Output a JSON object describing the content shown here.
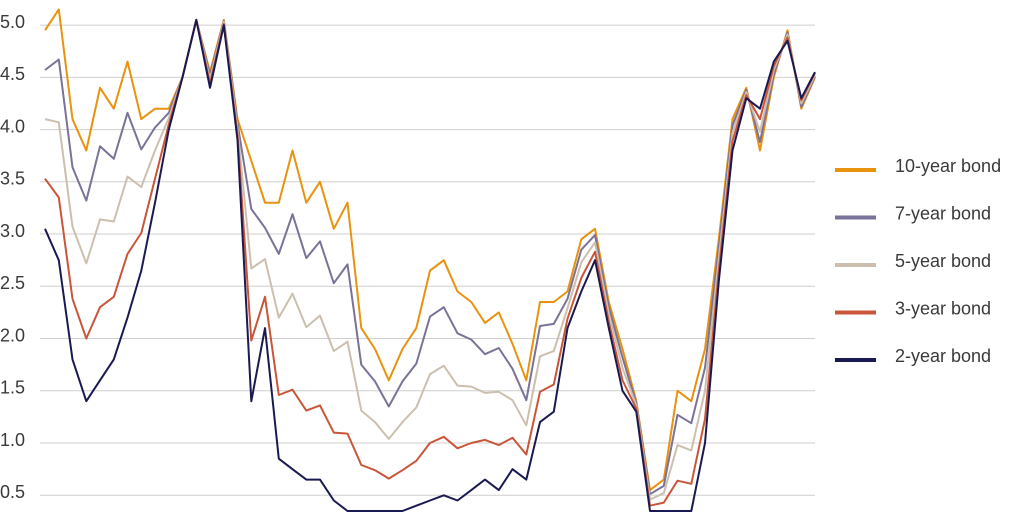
{
  "chart_data": {
    "type": "line",
    "categories": [
      null,
      null,
      null,
      null,
      null,
      null,
      null,
      null,
      null,
      null,
      null,
      null,
      null,
      null,
      null,
      null,
      null,
      null,
      null,
      null,
      null,
      null,
      null,
      null,
      null,
      null,
      null,
      null,
      null,
      null,
      null,
      null,
      null,
      null,
      null,
      null,
      null,
      null,
      null,
      null,
      null,
      null,
      null,
      null,
      null,
      null,
      null,
      null,
      null,
      null,
      null,
      null,
      null,
      null,
      null,
      null,
      null
    ],
    "series": [
      {
        "name": "10-year bond",
        "color": "#e8920e",
        "values": [
          4.95,
          5.15,
          4.1,
          3.8,
          4.4,
          4.2,
          4.65,
          4.1,
          4.2,
          4.2,
          4.5,
          5.05,
          4.55,
          5.05,
          4.1,
          3.7,
          3.3,
          3.3,
          3.8,
          3.3,
          3.5,
          3.05,
          3.3,
          2.1,
          1.9,
          1.6,
          1.9,
          2.1,
          2.65,
          2.75,
          2.45,
          2.35,
          2.15,
          2.25,
          1.95,
          1.6,
          2.35,
          2.35,
          2.45,
          2.95,
          3.05,
          2.35,
          1.9,
          1.4,
          0.55,
          0.65,
          1.5,
          1.4,
          1.9,
          2.95,
          4.1,
          4.4,
          3.8,
          4.5,
          4.95,
          4.2,
          4.5
        ]
      },
      {
        "name": "7-year bond",
        "color": "#7a7298",
        "values": [
          4.57,
          4.67,
          3.64,
          3.32,
          3.84,
          3.72,
          4.16,
          3.81,
          4.02,
          4.16,
          4.5,
          5.05,
          4.52,
          5.04,
          4.06,
          3.24,
          3.06,
          2.81,
          3.19,
          2.77,
          2.93,
          2.53,
          2.71,
          1.75,
          1.59,
          1.35,
          1.59,
          1.76,
          2.21,
          2.3,
          2.05,
          1.99,
          1.85,
          1.91,
          1.71,
          1.41,
          2.12,
          2.14,
          2.38,
          2.85,
          2.99,
          2.3,
          1.82,
          1.38,
          0.51,
          0.59,
          1.27,
          1.19,
          1.72,
          2.87,
          4.04,
          4.38,
          3.88,
          4.53,
          4.93,
          4.22,
          4.51
        ]
      },
      {
        "name": "5-year bond",
        "color": "#cdbfae",
        "values": [
          4.1,
          4.07,
          3.07,
          2.72,
          3.14,
          3.12,
          3.55,
          3.45,
          3.8,
          4.11,
          4.5,
          5.05,
          4.48,
          5.03,
          4.01,
          2.67,
          2.76,
          2.2,
          2.43,
          2.11,
          2.22,
          1.88,
          1.97,
          1.31,
          1.2,
          1.04,
          1.2,
          1.34,
          1.66,
          1.74,
          1.55,
          1.54,
          1.48,
          1.49,
          1.41,
          1.17,
          1.83,
          1.88,
          2.29,
          2.73,
          2.92,
          2.24,
          1.72,
          1.36,
          0.46,
          0.52,
          0.98,
          0.93,
          1.5,
          2.77,
          3.97,
          4.36,
          3.98,
          4.57,
          4.91,
          4.25,
          4.52
        ]
      },
      {
        "name": "3-year bond",
        "color": "#c9563a",
        "values": [
          3.53,
          3.35,
          2.38,
          2.0,
          2.3,
          2.4,
          2.81,
          3.01,
          3.53,
          4.05,
          4.5,
          5.05,
          4.44,
          5.01,
          3.95,
          1.98,
          2.4,
          1.46,
          1.51,
          1.31,
          1.36,
          1.1,
          1.09,
          0.79,
          0.74,
          0.66,
          0.74,
          0.83,
          1.0,
          1.06,
          0.95,
          1.0,
          1.03,
          0.98,
          1.05,
          0.89,
          1.49,
          1.56,
          2.19,
          2.58,
          2.83,
          2.16,
          1.6,
          1.33,
          0.4,
          0.43,
          0.64,
          0.61,
          1.23,
          2.65,
          3.89,
          4.33,
          4.1,
          4.61,
          4.88,
          4.28,
          4.54
        ]
      },
      {
        "name": "2-year bond",
        "color": "#1a1a52",
        "values": [
          3.05,
          2.75,
          1.8,
          1.4,
          1.6,
          1.8,
          2.2,
          2.65,
          3.3,
          4.0,
          4.5,
          5.05,
          4.4,
          5.0,
          3.9,
          1.4,
          2.1,
          0.85,
          0.75,
          0.65,
          0.65,
          0.45,
          0.35,
          0.35,
          0.35,
          0.35,
          0.35,
          0.4,
          0.45,
          0.5,
          0.45,
          0.55,
          0.65,
          0.55,
          0.75,
          0.65,
          1.2,
          1.3,
          2.1,
          2.45,
          2.75,
          2.1,
          1.5,
          1.3,
          0.35,
          0.35,
          0.35,
          0.35,
          1.0,
          2.55,
          3.8,
          4.3,
          4.2,
          4.65,
          4.85,
          4.3,
          4.55
        ]
      }
    ],
    "ylim": [
      0.34,
      5.24
    ],
    "yticks": [
      0.5,
      {
        "value": 1,
        "label": "1.0"
      },
      1.5,
      {
        "value": 2,
        "label": "2.0"
      },
      2.5,
      {
        "value": 3,
        "label": "3.0"
      },
      3.5,
      {
        "value": 4,
        "label": "4.0"
      },
      4.5,
      {
        "value": 5,
        "label": "5.0"
      }
    ],
    "grid": true,
    "legend": "right"
  }
}
